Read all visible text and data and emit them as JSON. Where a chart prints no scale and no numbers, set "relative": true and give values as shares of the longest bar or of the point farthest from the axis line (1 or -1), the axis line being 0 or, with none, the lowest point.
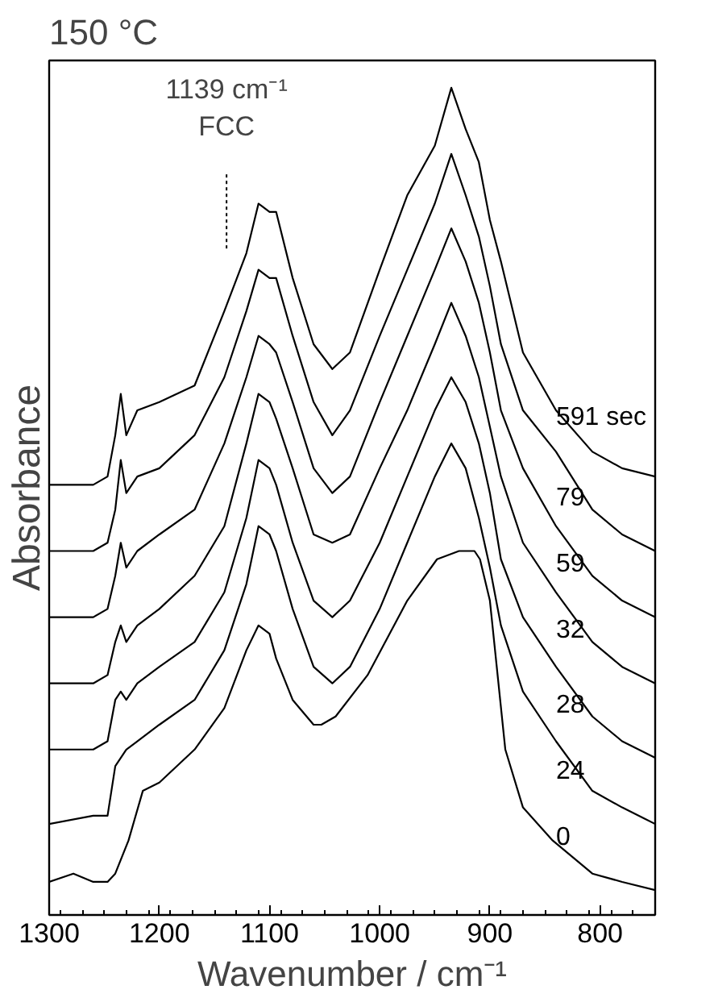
{
  "chart_data": {
    "type": "line",
    "title": "150 °C",
    "xlabel": "Wavenumber / cm⁻¹",
    "ylabel": "Absorbance",
    "relative": true,
    "xlim": [
      1300,
      750
    ],
    "xticks": [
      1300,
      1200,
      1100,
      1000,
      900,
      800
    ],
    "grid": false,
    "marker": "none",
    "line_style": "solid",
    "x": [
      1300,
      1260,
      1247,
      1240,
      1235,
      1230,
      1220,
      1200,
      1168,
      1141,
      1121,
      1110,
      1100,
      1094,
      1079,
      1060,
      1043,
      1027,
      1000,
      975,
      950,
      935,
      922,
      910,
      900,
      890,
      870,
      840,
      807,
      780,
      750
    ],
    "series": [
      {
        "name": "591 sec",
        "color": "#000000",
        "values": [
          0.52,
          0.52,
          0.53,
          0.58,
          0.63,
          0.58,
          0.61,
          0.62,
          0.64,
          0.73,
          0.8,
          0.86,
          0.85,
          0.85,
          0.77,
          0.69,
          0.66,
          0.68,
          0.78,
          0.87,
          0.93,
          1.0,
          0.95,
          0.91,
          0.84,
          0.79,
          0.68,
          0.61,
          0.56,
          0.54,
          0.53
        ]
      },
      {
        "name": "79",
        "color": "#000000",
        "values": [
          0.44,
          0.44,
          0.45,
          0.49,
          0.55,
          0.51,
          0.53,
          0.54,
          0.58,
          0.65,
          0.73,
          0.78,
          0.77,
          0.77,
          0.7,
          0.62,
          0.58,
          0.61,
          0.7,
          0.78,
          0.86,
          0.92,
          0.87,
          0.82,
          0.76,
          0.69,
          0.61,
          0.56,
          0.49,
          0.46,
          0.44
        ]
      },
      {
        "name": "59",
        "color": "#000000",
        "values": [
          0.36,
          0.36,
          0.37,
          0.41,
          0.45,
          0.42,
          0.44,
          0.46,
          0.49,
          0.57,
          0.65,
          0.7,
          0.69,
          0.68,
          0.62,
          0.54,
          0.51,
          0.53,
          0.62,
          0.7,
          0.78,
          0.83,
          0.79,
          0.74,
          0.68,
          0.61,
          0.54,
          0.47,
          0.41,
          0.38,
          0.36
        ]
      },
      {
        "name": "32",
        "color": "#000000",
        "values": [
          0.28,
          0.28,
          0.29,
          0.33,
          0.35,
          0.33,
          0.35,
          0.37,
          0.41,
          0.47,
          0.57,
          0.63,
          0.62,
          0.6,
          0.54,
          0.46,
          0.45,
          0.46,
          0.54,
          0.61,
          0.69,
          0.74,
          0.7,
          0.65,
          0.59,
          0.53,
          0.45,
          0.39,
          0.33,
          0.3,
          0.28
        ]
      },
      {
        "name": "28",
        "color": "#000000",
        "values": [
          0.2,
          0.2,
          0.21,
          0.26,
          0.27,
          0.26,
          0.28,
          0.3,
          0.33,
          0.39,
          0.48,
          0.55,
          0.54,
          0.52,
          0.45,
          0.38,
          0.36,
          0.38,
          0.45,
          0.53,
          0.61,
          0.65,
          0.62,
          0.57,
          0.51,
          0.43,
          0.36,
          0.3,
          0.24,
          0.21,
          0.19
        ]
      },
      {
        "name": "24",
        "color": "#000000",
        "values": [
          0.11,
          0.12,
          0.12,
          0.18,
          0.19,
          0.2,
          0.21,
          0.23,
          0.26,
          0.32,
          0.4,
          0.47,
          0.46,
          0.44,
          0.37,
          0.3,
          0.28,
          0.3,
          0.37,
          0.45,
          0.53,
          0.57,
          0.54,
          0.48,
          0.42,
          0.35,
          0.27,
          0.21,
          0.15,
          0.13,
          0.11
        ]
      },
      {
        "name": "0",
        "color": "#000000",
        "x": [
          1300,
          1278,
          1260,
          1247,
          1240,
          1228,
          1215,
          1200,
          1168,
          1141,
          1121,
          1110,
          1100,
          1094,
          1079,
          1060,
          1053,
          1040,
          1011,
          975,
          948,
          928,
          914,
          909,
          900,
          886,
          870,
          843,
          807,
          780,
          750
        ],
        "values": [
          0.04,
          0.05,
          0.04,
          0.04,
          0.05,
          0.09,
          0.15,
          0.16,
          0.2,
          0.25,
          0.32,
          0.35,
          0.34,
          0.31,
          0.26,
          0.23,
          0.23,
          0.24,
          0.29,
          0.38,
          0.43,
          0.44,
          0.44,
          0.43,
          0.38,
          0.2,
          0.13,
          0.09,
          0.05,
          0.04,
          0.03
        ]
      }
    ],
    "ref_lines": [
      {
        "axis": "x",
        "value": 1139,
        "label": "1139 cm⁻¹\nFCC",
        "line_style": "dotted"
      }
    ]
  }
}
